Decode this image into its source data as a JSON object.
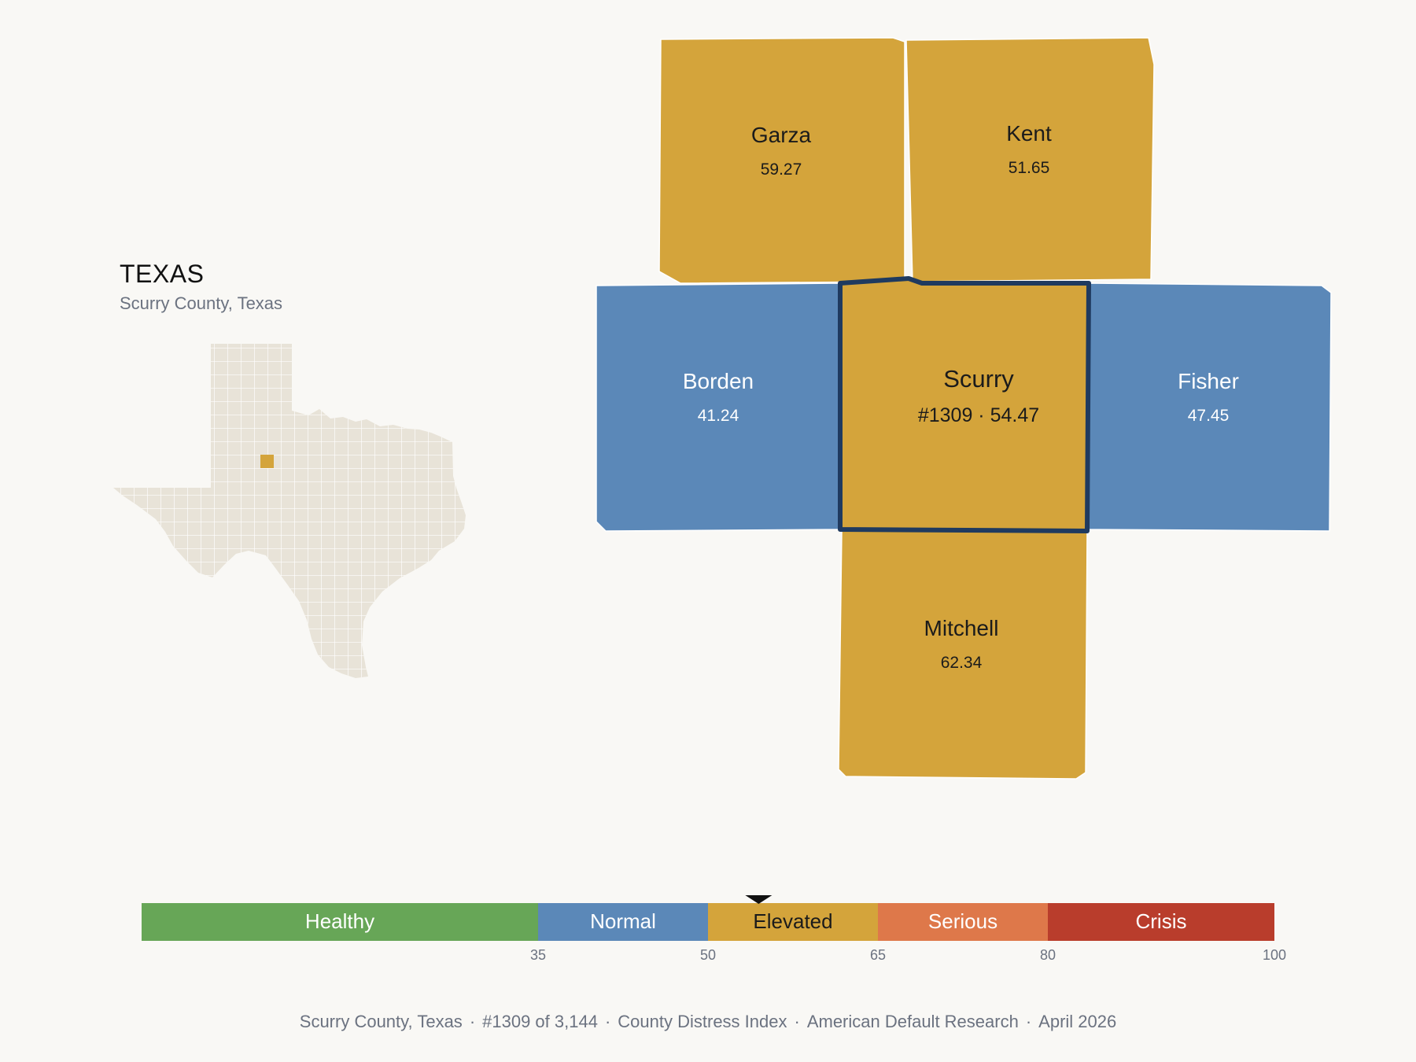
{
  "state": {
    "name": "TEXAS",
    "subtitle": "Scurry County, Texas"
  },
  "counties": [
    {
      "name": "Garza",
      "label": "59.27",
      "value": 59.27,
      "color": "#d4a43b"
    },
    {
      "name": "Kent",
      "label": "51.65",
      "value": 51.65,
      "color": "#d4a43b"
    },
    {
      "name": "Borden",
      "label": "41.24",
      "value": 41.24,
      "color": "#5b88b8"
    },
    {
      "name": "Scurry",
      "label": "#1309 · 54.47",
      "value": 54.47,
      "color": "#d4a43b",
      "focus": true
    },
    {
      "name": "Fisher",
      "label": "47.45",
      "value": 47.45,
      "color": "#5b88b8"
    },
    {
      "name": "Mitchell",
      "label": "62.34",
      "value": 62.34,
      "color": "#d4a43b"
    }
  ],
  "scale": {
    "categories": [
      {
        "label": "Healthy",
        "from": 0,
        "to": 35,
        "color": "#67a657"
      },
      {
        "label": "Normal",
        "from": 35,
        "to": 50,
        "color": "#5b88b8"
      },
      {
        "label": "Elevated",
        "from": 50,
        "to": 65,
        "color": "#d4a43b"
      },
      {
        "label": "Serious",
        "from": 65,
        "to": 80,
        "color": "#de784a"
      },
      {
        "label": "Crisis",
        "from": 80,
        "to": 100,
        "color": "#b93d2c"
      }
    ],
    "ticks": [
      "35",
      "50",
      "65",
      "80",
      "100"
    ],
    "marker_value": 54.47
  },
  "footer": {
    "parts": [
      "Scurry County, Texas",
      "#1309 of 3,144",
      "County Distress Index",
      "American Default Research",
      "April 2026"
    ]
  },
  "colors": {
    "background": "#f9f8f5",
    "state_fill": "#e8e3d8",
    "highlight": "#d4a43b",
    "focus_outline": "#1f3a5f"
  }
}
